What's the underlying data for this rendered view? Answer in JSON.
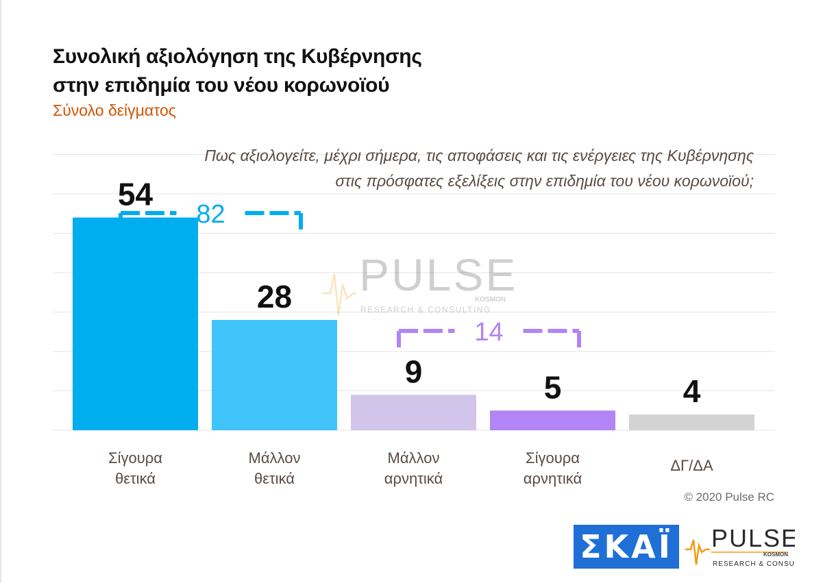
{
  "title_line1": "Συνολική αξιολόγηση της Κυβέρνησης",
  "title_line2": "στην επιδημία του νέου κορωνοϊού",
  "subtitle": "Σύνολο δείγματος",
  "question_line1": "Πως αξιολογείτε, μέχρι σήμερα, τις αποφάσεις και τις ενέργειες της Κυβέρνησης",
  "question_line2": "στις πρόσφατες εξελίξεις στην επιδημία του νέου κορωνοϊού;",
  "copyright": "© 2020 Pulse RC",
  "watermark": {
    "brand": "PULSE",
    "sub": "RESEARCH & CONSULTING",
    "tag": "KOSMON"
  },
  "logos": {
    "skai": "ΣΚΑΪ",
    "pulse": "PULSE",
    "pulse_sub": "RESEARCH & CONSULTING",
    "pulse_tag": "KOSMON"
  },
  "chart_data": {
    "type": "bar",
    "categories": [
      [
        "Σίγουρα",
        "θετικά"
      ],
      [
        "Μάλλον",
        "θετικά"
      ],
      [
        "Μάλλον",
        "αρνητικά"
      ],
      [
        "Σίγουρα",
        "αρνητικά"
      ],
      [
        "ΔΓ/ΔΑ"
      ]
    ],
    "values": [
      54,
      28,
      9,
      5,
      4
    ],
    "colors": [
      "#00adef",
      "#40c4fa",
      "#d2c4ea",
      "#b284f5",
      "#d3d3d3"
    ],
    "ylim": [
      0,
      60
    ],
    "grid": true,
    "brackets": [
      {
        "value": "82",
        "from": 0,
        "to": 1,
        "color": "#00adef"
      },
      {
        "value": "14",
        "from": 2,
        "to": 3,
        "color": "#b284f5"
      }
    ]
  }
}
